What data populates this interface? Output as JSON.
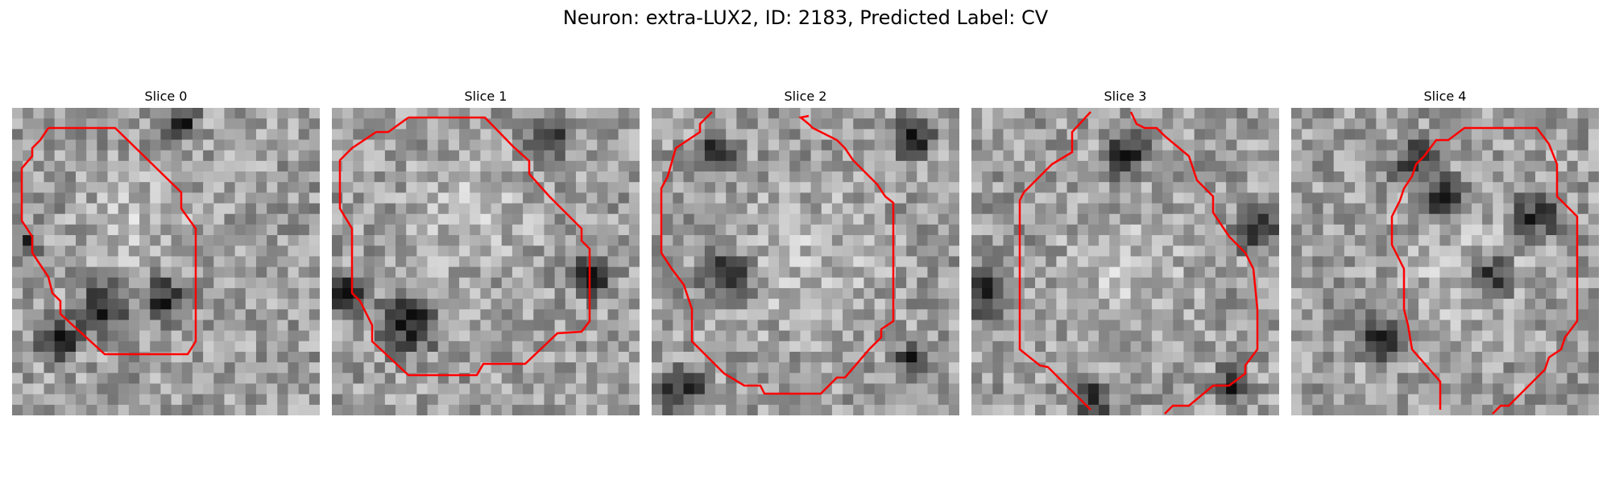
{
  "figure": {
    "title": "Neuron: extra-LUX2, ID: 2183, Predicted Label: CV"
  },
  "slices": [
    {
      "label": "Slice 0"
    },
    {
      "label": "Slice 1"
    },
    {
      "label": "Slice 2"
    },
    {
      "label": "Slice 3"
    },
    {
      "label": "Slice 4"
    }
  ],
  "colors": {
    "contour": "#ff0000",
    "background": "#ffffff"
  }
}
